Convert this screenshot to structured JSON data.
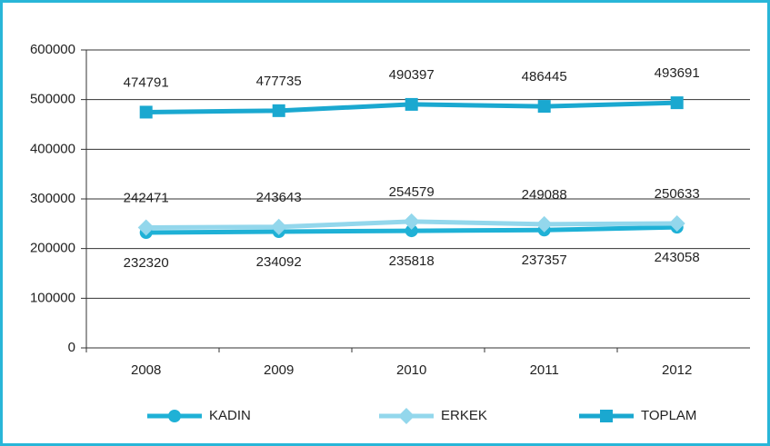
{
  "chart_data": {
    "type": "line",
    "categories": [
      "2008",
      "2009",
      "2010",
      "2011",
      "2012"
    ],
    "series": [
      {
        "name": "KADIN",
        "color": "#1fb1d6",
        "marker": "circle",
        "values": [
          232320,
          234092,
          235818,
          237357,
          243058
        ]
      },
      {
        "name": "ERKEK",
        "color": "#93d7ec",
        "marker": "diamond",
        "values": [
          242471,
          243643,
          254579,
          249088,
          250633
        ]
      },
      {
        "name": "TOPLAM",
        "color": "#1aa8d0",
        "marker": "square",
        "values": [
          474791,
          477735,
          490397,
          486445,
          493691
        ]
      }
    ],
    "ylim": [
      0,
      600000
    ],
    "yticks": [
      0,
      100000,
      200000,
      300000,
      400000,
      500000,
      600000
    ],
    "grid": true,
    "legend": "bottom"
  }
}
